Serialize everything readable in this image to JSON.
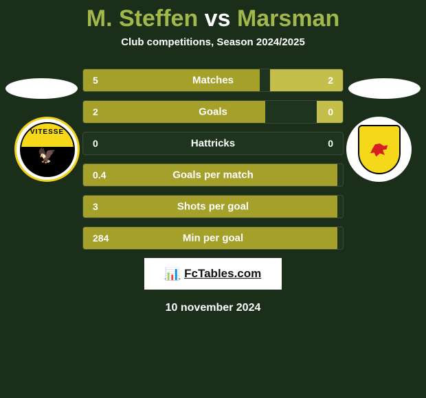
{
  "title": {
    "player1": "M. Steffen",
    "vs": "vs",
    "player2": "Marsman",
    "player1_color": "#a3b84b",
    "vs_color": "#ffffff",
    "player2_color": "#a3b84b"
  },
  "subtitle": "Club competitions, Season 2024/2025",
  "colors": {
    "olive": "#a5a02a",
    "olive_light": "#c4be4a",
    "bar_border": "#3a4a3a",
    "background": "#1a2e1a"
  },
  "rows": [
    {
      "label": "Matches",
      "left_val": "5",
      "right_val": "2",
      "left_pct": 68,
      "right_pct": 28
    },
    {
      "label": "Goals",
      "left_val": "2",
      "right_val": "0",
      "left_pct": 70,
      "right_pct": 10
    },
    {
      "label": "Hattricks",
      "left_val": "0",
      "right_val": "0",
      "left_pct": 0,
      "right_pct": 0
    },
    {
      "label": "Goals per match",
      "left_val": "0.4",
      "right_val": "",
      "left_pct": 98,
      "right_pct": 0
    },
    {
      "label": "Shots per goal",
      "left_val": "3",
      "right_val": "",
      "left_pct": 98,
      "right_pct": 0
    },
    {
      "label": "Min per goal",
      "left_val": "284",
      "right_val": "",
      "left_pct": 98,
      "right_pct": 0
    }
  ],
  "left_club_text": "VITESSE",
  "footer": {
    "site": "FcTables.com",
    "date": "10 november 2024"
  }
}
